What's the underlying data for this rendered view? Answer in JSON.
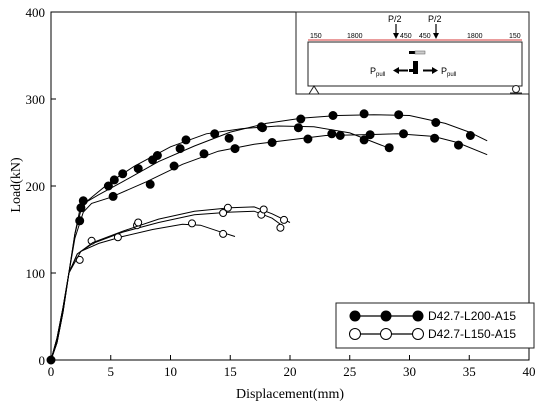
{
  "chart_data": {
    "type": "line",
    "xlabel": "Displacement(mm)",
    "ylabel": "Load(kN)",
    "xlim": [
      0,
      40
    ],
    "ylim": [
      0,
      400
    ],
    "xticks": [
      0,
      5,
      10,
      15,
      20,
      25,
      30,
      35,
      40
    ],
    "yticks": [
      0,
      100,
      200,
      300,
      400
    ],
    "grid": false,
    "legend_position": "bottom-right",
    "series": [
      {
        "name": "D42.7-L200-A15",
        "marker": "filled-circle",
        "curves": [
          {
            "line": [
              [
                0,
                0
              ],
              [
                0.5,
                20
              ],
              [
                1,
                55
              ],
              [
                1.5,
                100
              ],
              [
                2,
                145
              ],
              [
                2.4,
                172
              ],
              [
                2.8,
                180
              ],
              [
                3.5,
                188
              ],
              [
                5,
                205
              ],
              [
                7,
                223
              ],
              [
                10,
                245
              ],
              [
                13,
                260
              ],
              [
                16,
                266
              ],
              [
                19,
                269
              ],
              [
                22,
                268
              ],
              [
                25,
                261
              ],
              [
                28,
                245
              ]
            ],
            "markers": [
              [
                0,
                0
              ],
              [
                2.7,
                183
              ],
              [
                5.3,
                207
              ],
              [
                7.3,
                220
              ],
              [
                8.9,
                235
              ],
              [
                11.3,
                253
              ],
              [
                13.7,
                260
              ],
              [
                17.7,
                267
              ],
              [
                20.7,
                267
              ],
              [
                23.5,
                260
              ],
              [
                26.2,
                253
              ],
              [
                28.3,
                244
              ]
            ]
          },
          {
            "line": [
              [
                0,
                0
              ],
              [
                0.5,
                20
              ],
              [
                1,
                55
              ],
              [
                1.5,
                100
              ],
              [
                2,
                145
              ],
              [
                2.5,
                172
              ],
              [
                3,
                182
              ],
              [
                4,
                190
              ],
              [
                6,
                205
              ],
              [
                9,
                228
              ],
              [
                12,
                246
              ],
              [
                15,
                262
              ],
              [
                18,
                272
              ],
              [
                21,
                278
              ],
              [
                24,
                281
              ],
              [
                27,
                282
              ],
              [
                30,
                281
              ],
              [
                33,
                272
              ],
              [
                35,
                262
              ],
              [
                36.5,
                252
              ]
            ],
            "markers": [
              [
                2.4,
                160
              ],
              [
                4.8,
                200
              ],
              [
                6,
                214
              ],
              [
                8.5,
                230
              ],
              [
                10.8,
                243
              ],
              [
                14.9,
                255
              ],
              [
                17.6,
                268
              ],
              [
                20.9,
                277
              ],
              [
                23.6,
                281
              ],
              [
                26.2,
                283
              ],
              [
                29.1,
                282
              ],
              [
                32.2,
                273
              ],
              [
                35.1,
                258
              ]
            ]
          },
          {
            "line": [
              [
                0,
                0
              ],
              [
                0.5,
                20
              ],
              [
                1,
                55
              ],
              [
                1.5,
                100
              ],
              [
                2,
                140
              ],
              [
                2.7,
                170
              ],
              [
                3.4,
                180
              ],
              [
                5,
                187
              ],
              [
                8,
                205
              ],
              [
                11,
                225
              ],
              [
                14,
                240
              ],
              [
                17,
                248
              ],
              [
                20,
                253
              ],
              [
                23,
                258
              ],
              [
                26,
                259
              ],
              [
                29,
                260
              ],
              [
                32,
                257
              ],
              [
                34,
                250
              ],
              [
                36.5,
                236
              ]
            ],
            "markers": [
              [
                2.5,
                175
              ],
              [
                5.2,
                188
              ],
              [
                8.3,
                202
              ],
              [
                10.3,
                223
              ],
              [
                12.8,
                237
              ],
              [
                15.4,
                243
              ],
              [
                18.5,
                250
              ],
              [
                21.5,
                254
              ],
              [
                24.2,
                258
              ],
              [
                26.7,
                259
              ],
              [
                29.5,
                260
              ],
              [
                32.1,
                255
              ],
              [
                34.1,
                247
              ]
            ]
          }
        ]
      },
      {
        "name": "D42.7-L150-A15",
        "marker": "open-circle",
        "curves": [
          {
            "line": [
              [
                0,
                0
              ],
              [
                0.5,
                25
              ],
              [
                1,
                60
              ],
              [
                1.5,
                100
              ],
              [
                2.2,
                122
              ],
              [
                3.5,
                134
              ],
              [
                6,
                147
              ],
              [
                9,
                158
              ],
              [
                12,
                167
              ],
              [
                15,
                170
              ],
              [
                17,
                171
              ],
              [
                18.5,
                163
              ],
              [
                19.5,
                153
              ]
            ],
            "markers": [
              [
                2.4,
                115
              ],
              [
                3.4,
                137
              ],
              [
                7.2,
                155
              ],
              [
                14.4,
                169
              ],
              [
                17.6,
                167
              ],
              [
                19.2,
                152
              ]
            ]
          },
          {
            "line": [
              [
                0,
                0
              ],
              [
                0.5,
                25
              ],
              [
                1,
                60
              ],
              [
                1.5,
                100
              ],
              [
                2.2,
                122
              ],
              [
                3.5,
                135
              ],
              [
                6,
                148
              ],
              [
                9,
                162
              ],
              [
                12,
                171
              ],
              [
                15,
                175
              ],
              [
                17,
                176
              ],
              [
                18.5,
                168
              ],
              [
                20,
                158
              ]
            ],
            "markers": [
              [
                7.3,
                158
              ],
              [
                14.8,
                175
              ],
              [
                17.8,
                173
              ],
              [
                19.5,
                161
              ]
            ]
          },
          {
            "line": [
              [
                0,
                0
              ],
              [
                0.5,
                25
              ],
              [
                1,
                60
              ],
              [
                1.5,
                100
              ],
              [
                2.5,
                125
              ],
              [
                4,
                134
              ],
              [
                6,
                142
              ],
              [
                8.5,
                150
              ],
              [
                11,
                156
              ],
              [
                12.5,
                155
              ],
              [
                14,
                148
              ],
              [
                15.4,
                142
              ]
            ],
            "markers": [
              [
                5.6,
                141
              ],
              [
                11.8,
                157
              ],
              [
                14.4,
                145
              ]
            ]
          }
        ]
      }
    ],
    "inset": {
      "description_labels": [
        "P/2",
        "P/2",
        "P_pull",
        "P_pull"
      ],
      "dimensions": [
        "150",
        "1800",
        "450",
        "450",
        "1800",
        "150"
      ],
      "pull_label": "P",
      "pull_subscript": "pull"
    }
  }
}
